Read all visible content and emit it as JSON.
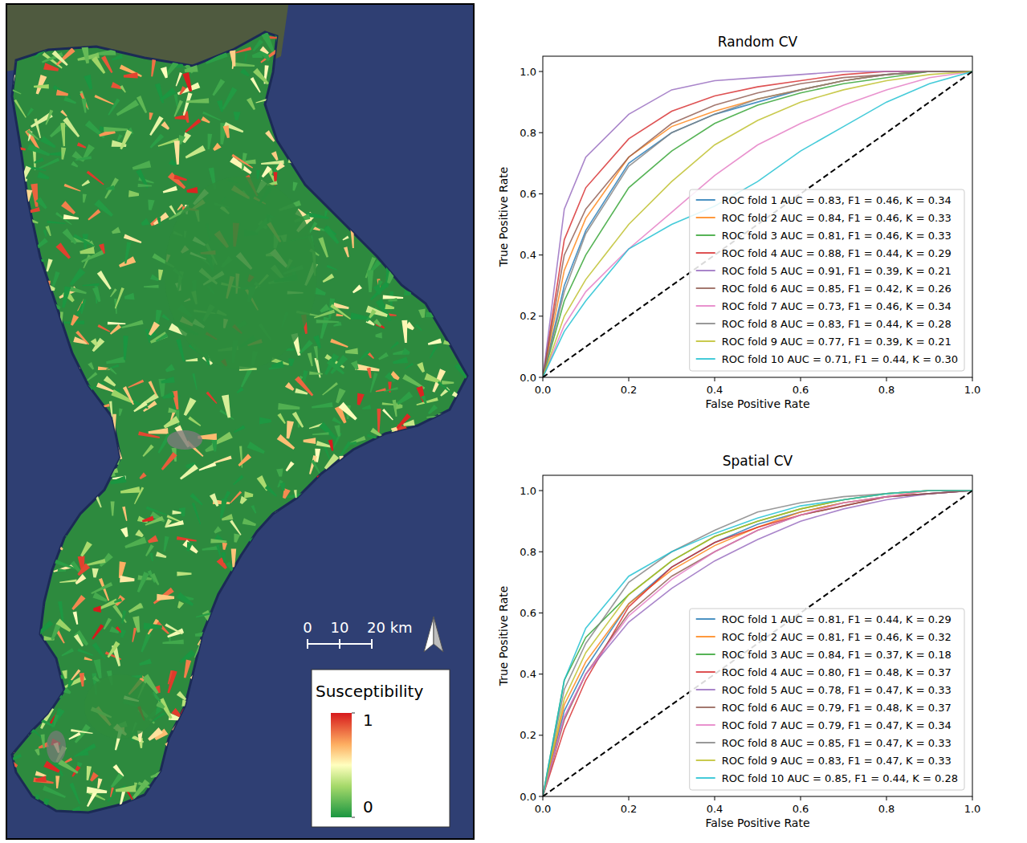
{
  "chart_data": [
    {
      "type": "line",
      "title": "Random CV",
      "x_label": "False Positive Rate",
      "y_label": "True Positive Rate",
      "xlim": [
        0,
        1
      ],
      "ylim": [
        0,
        1.05
      ],
      "xticks": [
        {
          "value": 0,
          "label": "0.0"
        },
        0.2,
        0.4,
        0.6,
        0.8,
        {
          "value": 1,
          "label": "1.0"
        }
      ],
      "yticks": [
        {
          "value": 0,
          "label": "0.0"
        },
        0.2,
        0.4,
        0.6,
        0.8,
        {
          "value": 1,
          "label": "1.0"
        }
      ],
      "legend": "lower right",
      "grid": false,
      "x": [
        0,
        0.05,
        0.1,
        0.2,
        0.3,
        0.4,
        0.5,
        0.6,
        0.7,
        0.8,
        0.9,
        1
      ],
      "series": [
        {
          "name": "ROC fold 1 AUC = 0.83, F1 = 0.46, K = 0.34",
          "color": "#1f77b4",
          "values": [
            0,
            0.3,
            0.48,
            0.7,
            0.8,
            0.86,
            0.9,
            0.94,
            0.97,
            0.99,
            1,
            1
          ]
        },
        {
          "name": "ROC fold 2 AUC = 0.84, F1 = 0.46, K = 0.33",
          "color": "#ff7f0e",
          "values": [
            0,
            0.35,
            0.52,
            0.72,
            0.82,
            0.87,
            0.91,
            0.94,
            0.97,
            0.99,
            1,
            1
          ]
        },
        {
          "name": "ROC fold 3 AUC = 0.81, F1 = 0.46, K = 0.33",
          "color": "#2ca02c",
          "values": [
            0,
            0.25,
            0.4,
            0.62,
            0.74,
            0.83,
            0.89,
            0.93,
            0.96,
            0.98,
            1,
            1
          ]
        },
        {
          "name": "ROC fold 4 AUC = 0.88, F1 = 0.44, K = 0.29",
          "color": "#d62728",
          "values": [
            0,
            0.45,
            0.62,
            0.78,
            0.87,
            0.92,
            0.95,
            0.97,
            0.99,
            1,
            1,
            1
          ]
        },
        {
          "name": "ROC fold 5 AUC = 0.91, F1 = 0.39, K = 0.21",
          "color": "#9467bd",
          "values": [
            0,
            0.55,
            0.72,
            0.86,
            0.94,
            0.97,
            0.98,
            0.99,
            1,
            1,
            1,
            1
          ]
        },
        {
          "name": "ROC fold 6 AUC = 0.85, F1 = 0.42, K = 0.26",
          "color": "#8c564b",
          "values": [
            0,
            0.4,
            0.55,
            0.72,
            0.83,
            0.89,
            0.93,
            0.96,
            0.98,
            0.99,
            1,
            1
          ]
        },
        {
          "name": "ROC fold 7 AUC = 0.73, F1 = 0.46, K = 0.34",
          "color": "#e377c2",
          "values": [
            0,
            0.17,
            0.28,
            0.42,
            0.54,
            0.66,
            0.76,
            0.83,
            0.89,
            0.94,
            0.98,
            1
          ]
        },
        {
          "name": "ROC fold 8 AUC = 0.83, F1 = 0.44, K = 0.28",
          "color": "#7f7f7f",
          "values": [
            0,
            0.28,
            0.47,
            0.69,
            0.8,
            0.86,
            0.91,
            0.94,
            0.97,
            0.99,
            1,
            1
          ]
        },
        {
          "name": "ROC fold 9 AUC = 0.77, F1 = 0.39, K = 0.21",
          "color": "#bcbd22",
          "values": [
            0,
            0.2,
            0.32,
            0.5,
            0.64,
            0.76,
            0.84,
            0.9,
            0.94,
            0.97,
            0.99,
            1
          ]
        },
        {
          "name": "ROC fold 10 AUC = 0.71, F1 = 0.44, K = 0.30",
          "color": "#17becf",
          "values": [
            0,
            0.15,
            0.25,
            0.42,
            0.5,
            0.56,
            0.64,
            0.74,
            0.82,
            0.9,
            0.96,
            1
          ]
        },
        {
          "color": "#000000",
          "line_style": "dashed",
          "x": [
            0,
            1
          ],
          "values": [
            0,
            1
          ]
        }
      ]
    },
    {
      "type": "line",
      "title": "Spatial CV",
      "x_label": "False Positive Rate",
      "y_label": "True Positive Rate",
      "xlim": [
        0,
        1
      ],
      "ylim": [
        0,
        1.05
      ],
      "xticks": [
        {
          "value": 0,
          "label": "0.0"
        },
        0.2,
        0.4,
        0.6,
        0.8,
        {
          "value": 1,
          "label": "1.0"
        }
      ],
      "yticks": [
        {
          "value": 0,
          "label": "0.0"
        },
        0.2,
        0.4,
        0.6,
        0.8,
        {
          "value": 1,
          "label": "1.0"
        }
      ],
      "legend": "lower right",
      "grid": false,
      "x": [
        0,
        0.05,
        0.1,
        0.2,
        0.3,
        0.4,
        0.5,
        0.6,
        0.7,
        0.8,
        0.9,
        1
      ],
      "series": [
        {
          "name": "ROC fold 1 AUC = 0.81, F1 = 0.44, K = 0.29",
          "color": "#1f77b4",
          "values": [
            0,
            0.28,
            0.42,
            0.63,
            0.75,
            0.83,
            0.89,
            0.93,
            0.96,
            0.98,
            0.99,
            1
          ]
        },
        {
          "name": "ROC fold 2 AUC = 0.81, F1 = 0.46, K = 0.32",
          "color": "#ff7f0e",
          "values": [
            0,
            0.3,
            0.44,
            0.63,
            0.74,
            0.82,
            0.88,
            0.93,
            0.96,
            0.98,
            1,
            1
          ]
        },
        {
          "name": "ROC fold 3 AUC = 0.84, F1 = 0.37, K = 0.18",
          "color": "#2ca02c",
          "values": [
            0,
            0.38,
            0.52,
            0.66,
            0.77,
            0.85,
            0.9,
            0.94,
            0.97,
            0.99,
            1,
            1
          ]
        },
        {
          "name": "ROC fold 4 AUC = 0.80, F1 = 0.48, K = 0.37",
          "color": "#d62728",
          "values": [
            0,
            0.22,
            0.38,
            0.62,
            0.75,
            0.83,
            0.88,
            0.92,
            0.95,
            0.98,
            0.99,
            1
          ]
        },
        {
          "name": "ROC fold 5 AUC = 0.78, F1 = 0.47, K = 0.33",
          "color": "#9467bd",
          "values": [
            0,
            0.26,
            0.4,
            0.57,
            0.68,
            0.77,
            0.84,
            0.9,
            0.94,
            0.97,
            0.99,
            1
          ]
        },
        {
          "name": "ROC fold 6 AUC = 0.79, F1 = 0.48, K = 0.37",
          "color": "#8c564b",
          "values": [
            0,
            0.25,
            0.4,
            0.6,
            0.72,
            0.8,
            0.87,
            0.92,
            0.95,
            0.98,
            0.99,
            1
          ]
        },
        {
          "name": "ROC fold 7 AUC = 0.79, F1 = 0.47, K = 0.34",
          "color": "#e377c2",
          "values": [
            0,
            0.26,
            0.4,
            0.59,
            0.71,
            0.8,
            0.87,
            0.92,
            0.96,
            0.98,
            1,
            1
          ]
        },
        {
          "name": "ROC fold 8 AUC = 0.85, F1 = 0.47, K = 0.33",
          "color": "#7f7f7f",
          "values": [
            0,
            0.35,
            0.5,
            0.7,
            0.8,
            0.87,
            0.93,
            0.96,
            0.98,
            0.99,
            1,
            1
          ]
        },
        {
          "name": "ROC fold 9 AUC = 0.83, F1 = 0.47, K = 0.33",
          "color": "#bcbd22",
          "values": [
            0,
            0.32,
            0.47,
            0.66,
            0.77,
            0.85,
            0.9,
            0.94,
            0.97,
            0.99,
            1,
            1
          ]
        },
        {
          "name": "ROC fold 10 AUC = 0.85, F1 = 0.44, K = 0.28",
          "color": "#17becf",
          "values": [
            0,
            0.38,
            0.55,
            0.72,
            0.8,
            0.86,
            0.91,
            0.95,
            0.97,
            0.99,
            1,
            1
          ]
        },
        {
          "color": "#000000",
          "line_style": "dashed",
          "x": [
            0,
            1
          ],
          "values": [
            0,
            1
          ]
        }
      ]
    }
  ],
  "map": {
    "colorbar": {
      "title": "Susceptibility",
      "range": [
        0,
        1
      ],
      "ticks": [
        0,
        1
      ]
    },
    "scale_bar": {
      "ticks": [
        {
          "value": 0,
          "label": "0"
        },
        {
          "value": 10,
          "label": "10"
        },
        {
          "value": 20,
          "label": "20 km"
        }
      ]
    }
  }
}
